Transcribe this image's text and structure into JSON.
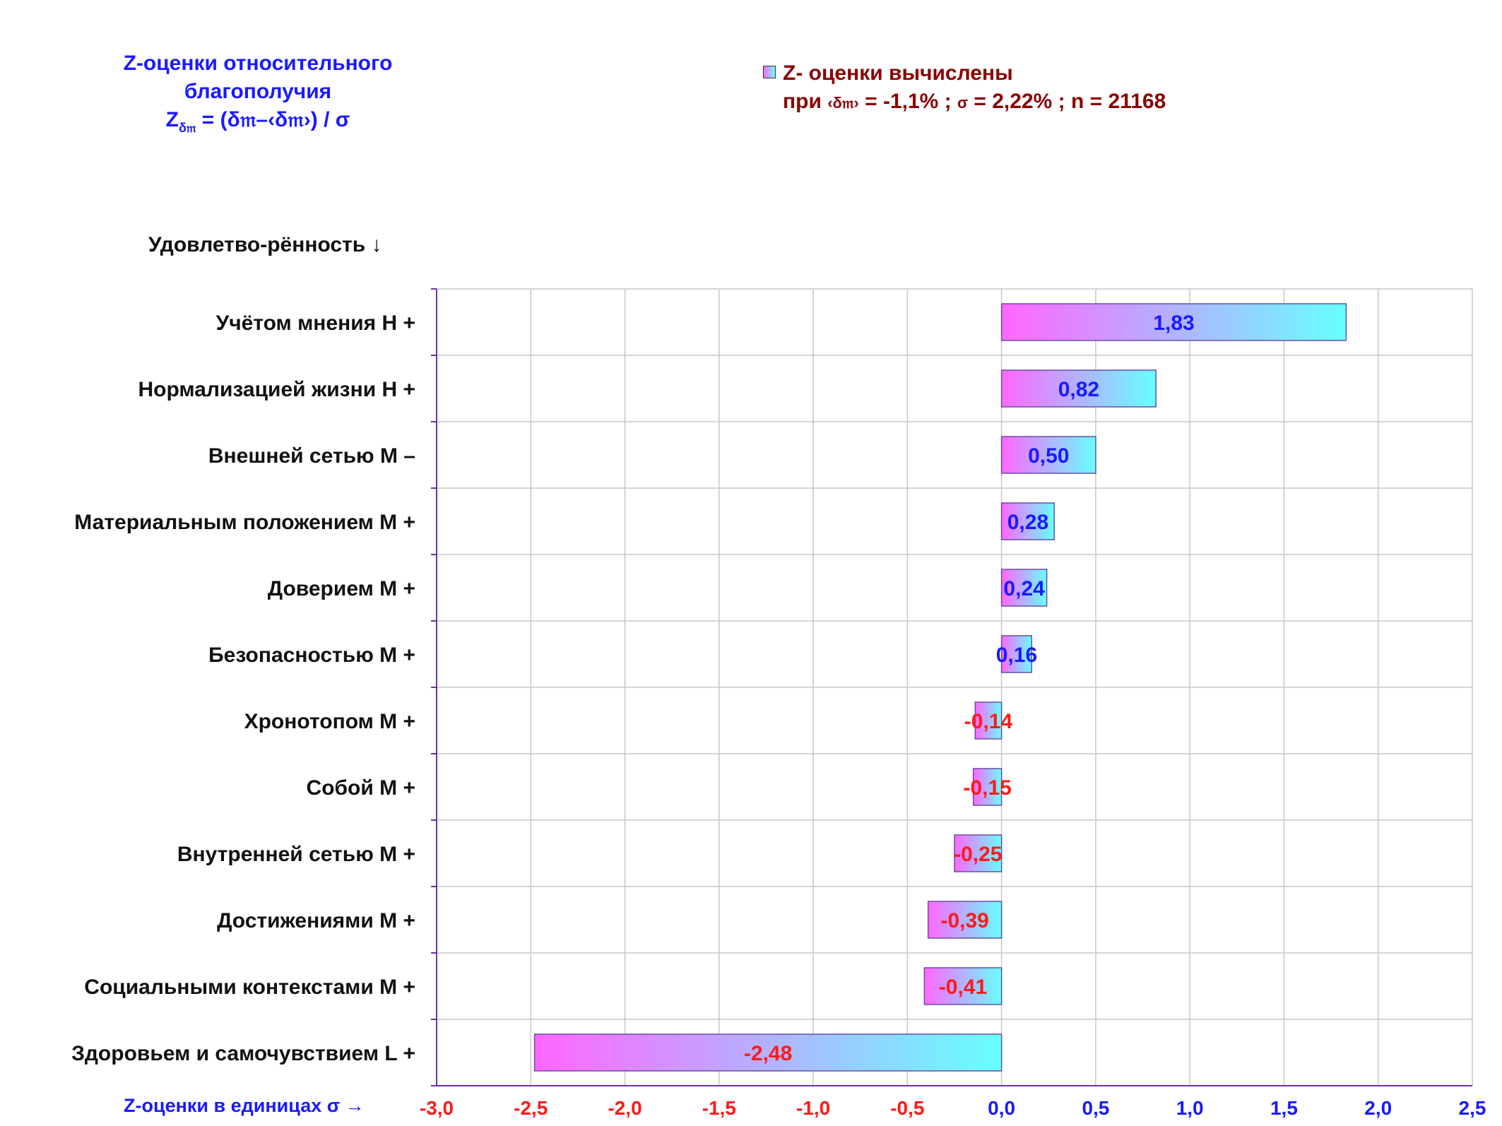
{
  "title": {
    "line1": "Z-оценки  относительного",
    "line2": "благополучия",
    "formula_z": "Z",
    "formula_sub": "δ𝔪",
    "formula_rest": " = (δ𝔪–‹δ𝔪›)  / σ"
  },
  "legend": {
    "label": "Z- оценки вычислены",
    "line2_prefix": "при ",
    "line2_delta": "‹δ𝔪›",
    "line2_mid": " = -1,1% ; ",
    "line2_sigma": "σ",
    "line2_rest": " = 2,22% ; n = 21168",
    "swatch_colors": [
      "#ff66ff",
      "#66ffff"
    ]
  },
  "chart_data": {
    "type": "bar",
    "orientation": "horizontal",
    "ylabel": "Удовлетво-рённость ↓",
    "xlabel": "Z-оценки в единицах σ →",
    "xlim": [
      -3.0,
      2.5
    ],
    "x_ticks": [
      "-3,0",
      "-2,5",
      "-2,0",
      "-1,5",
      "-1,0",
      "-0,5",
      "0,0",
      "0,5",
      "1,0",
      "1,5",
      "2,0",
      "2,5"
    ],
    "x_tick_values": [
      -3.0,
      -2.5,
      -2.0,
      -1.5,
      -1.0,
      -0.5,
      0.0,
      0.5,
      1.0,
      1.5,
      2.0,
      2.5
    ],
    "grid": true,
    "categories": [
      "Учётом мнения  Н +",
      "Нормализацией жизни  Н +",
      "Внешней сетью  М –",
      "Материальным положением  М +",
      "Доверием  М +",
      "Безопасностью  М +",
      "Хронотопом  М +",
      "Собой  М +",
      "Внутренней сетью  М +",
      "Достижениями  М +",
      "Социальными контекстами  М +",
      "Здоровьем и самочувствием  L +"
    ],
    "values": [
      1.83,
      0.82,
      0.5,
      0.28,
      0.24,
      0.16,
      -0.14,
      -0.15,
      -0.25,
      -0.39,
      -0.41,
      -2.48
    ],
    "value_labels": [
      "1,83",
      "0,82",
      "0,50",
      "0,28",
      "0,24",
      "0,16",
      "-0,14",
      "-0,15",
      "-0,25",
      "-0,39",
      "-0,41",
      "-2,48"
    ],
    "colors": {
      "bar_gradient": [
        "#ff66ff",
        "#66ffff"
      ],
      "positive_label": "#1a1aff",
      "negative_label": "#ff1a1a",
      "axis": "#7030a0",
      "grid": "#c8c8c8"
    }
  }
}
